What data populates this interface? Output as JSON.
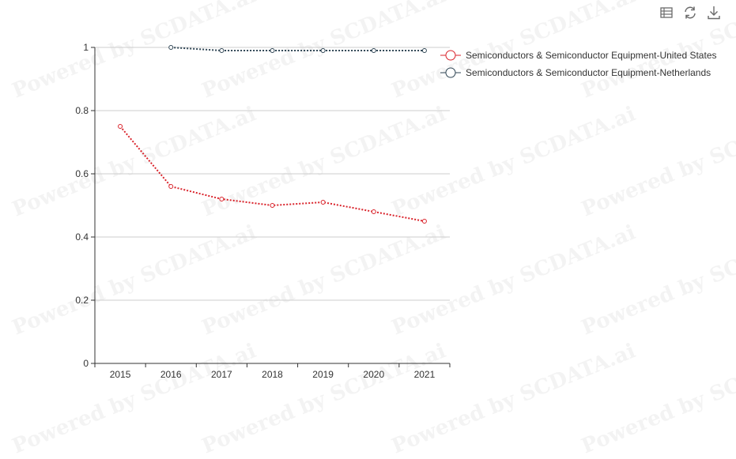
{
  "watermark_text": "Powered by SCDATA.ai",
  "toolbar": {
    "icons": [
      "data-view-icon",
      "refresh-icon",
      "download-icon"
    ]
  },
  "colors": {
    "us": "#d9232b",
    "nl": "#2f4554",
    "grid": "#cccccc",
    "axis": "#333333",
    "icon": "#6a6a6a"
  },
  "chart_data": {
    "type": "line",
    "categories": [
      "2015",
      "2016",
      "2017",
      "2018",
      "2019",
      "2020",
      "2021"
    ],
    "ylim": [
      0,
      1
    ],
    "yticks": [
      0,
      0.2,
      0.4,
      0.6,
      0.8,
      1
    ],
    "grid": true,
    "legend_position": "top-right",
    "series": [
      {
        "name": "Semiconductors & Semiconductor Equipment-United States",
        "values": [
          0.75,
          0.56,
          0.52,
          0.5,
          0.51,
          0.48,
          0.45
        ],
        "color": "#d9232b",
        "line_style": "dotted"
      },
      {
        "name": "Semiconductors & Semiconductor Equipment-Netherlands",
        "values": [
          null,
          1.0,
          0.99,
          0.99,
          0.99,
          0.99,
          0.99
        ],
        "color": "#2f4554",
        "line_style": "dotted"
      }
    ]
  }
}
